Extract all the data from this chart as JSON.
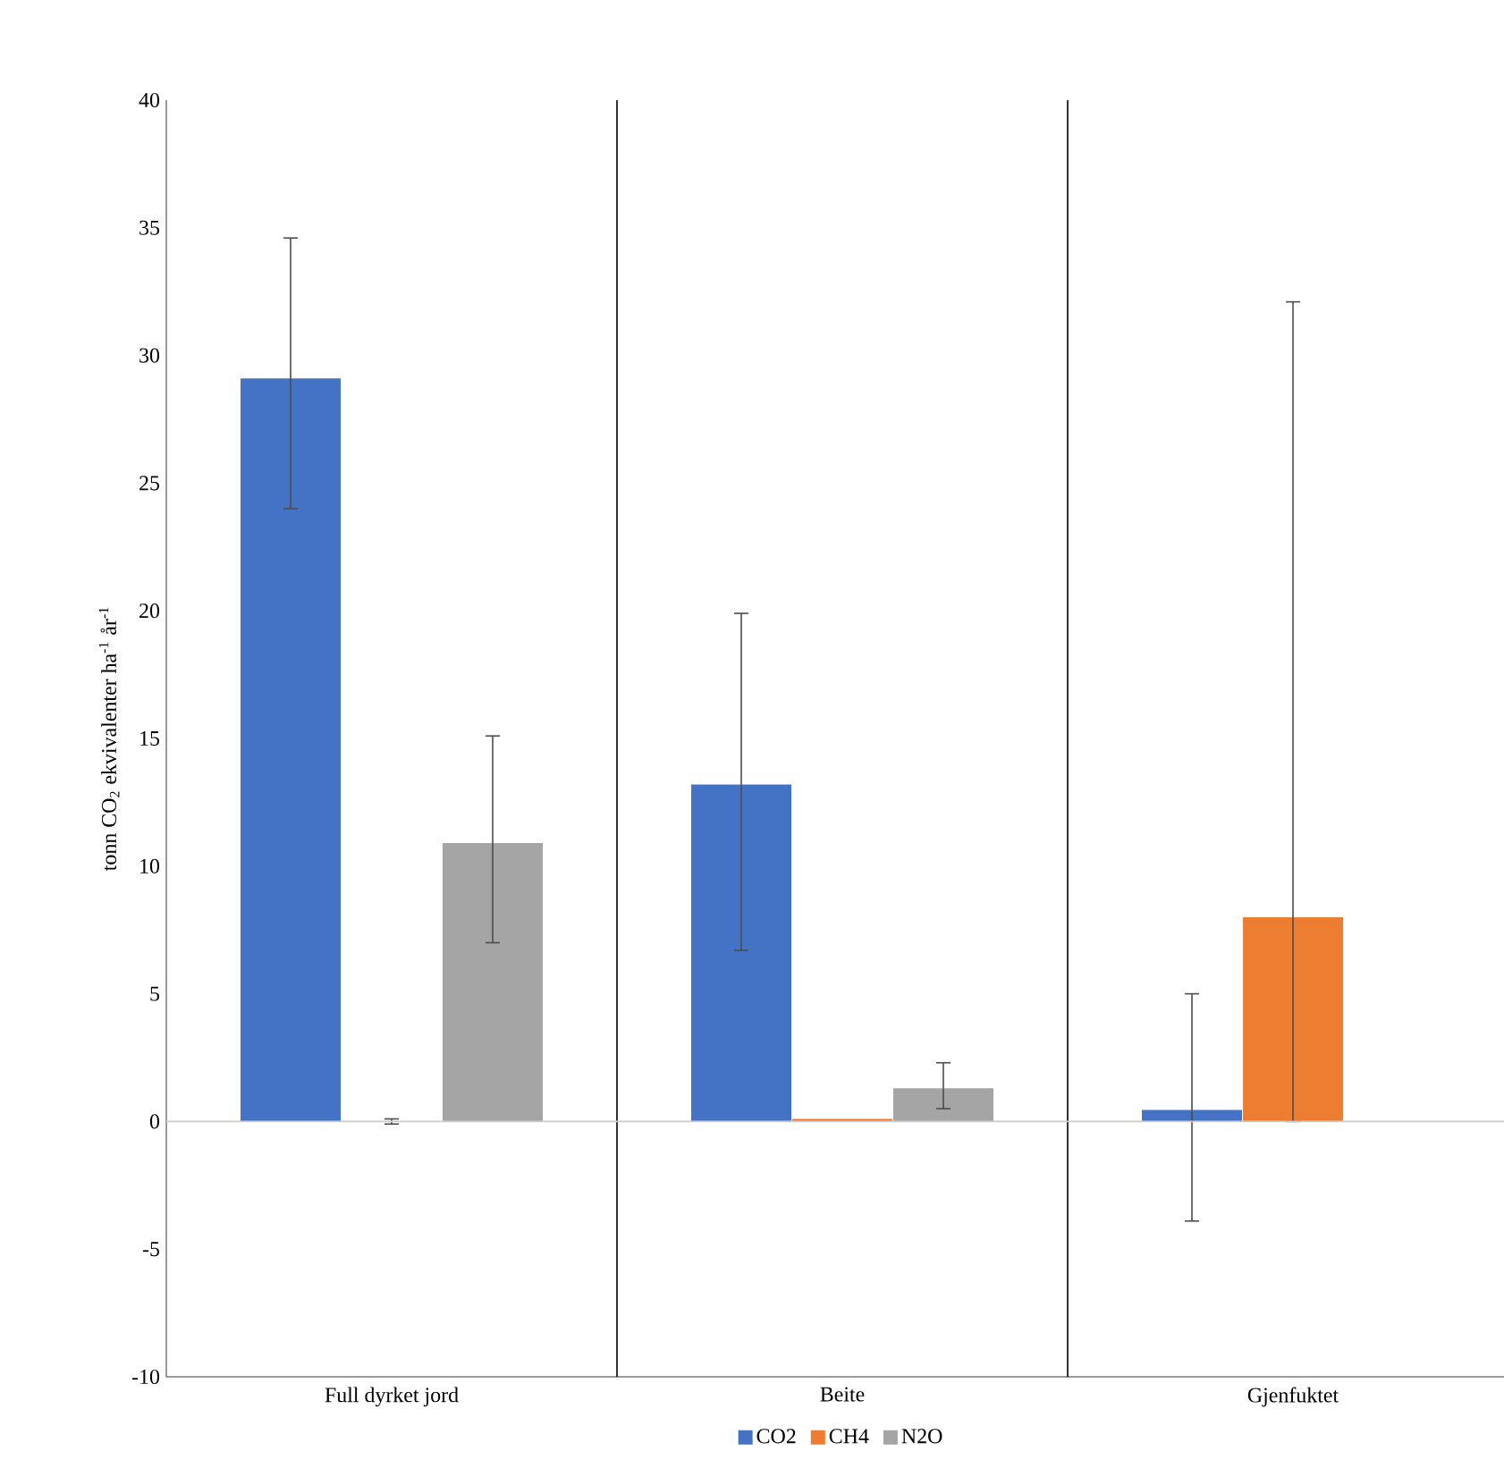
{
  "chart_data": {
    "type": "bar",
    "ylabel": "tonn CO$_{2}$ ekvivalenter ha$^{-1}$ år$^{-1}$",
    "categories": [
      "Full dyrket jord",
      "Beite",
      "Gjenfuktet"
    ],
    "series": [
      {
        "name": "CO2",
        "color": "#4472c4",
        "values": [
          29.1,
          13.2,
          0.45
        ],
        "errors": [
          [
            24.0,
            34.6
          ],
          [
            6.7,
            19.9
          ],
          [
            -3.9,
            5.0
          ]
        ]
      },
      {
        "name": "CH4",
        "color": "#ed7d31",
        "values": [
          0,
          0.1,
          8.0
        ],
        "errors": [
          [
            -0.1,
            0.1
          ],
          null,
          [
            0,
            32.1
          ]
        ]
      },
      {
        "name": "N2O",
        "color": "#a5a5a5",
        "values": [
          10.9,
          1.3,
          null
        ],
        "errors": [
          [
            7.0,
            15.1
          ],
          [
            0.5,
            2.3
          ],
          null
        ]
      }
    ],
    "ylim": [
      -10,
      40
    ],
    "yticks": [
      -10,
      -5,
      0,
      5,
      10,
      15,
      20,
      25,
      30,
      35,
      40
    ],
    "legend": "bottom"
  }
}
